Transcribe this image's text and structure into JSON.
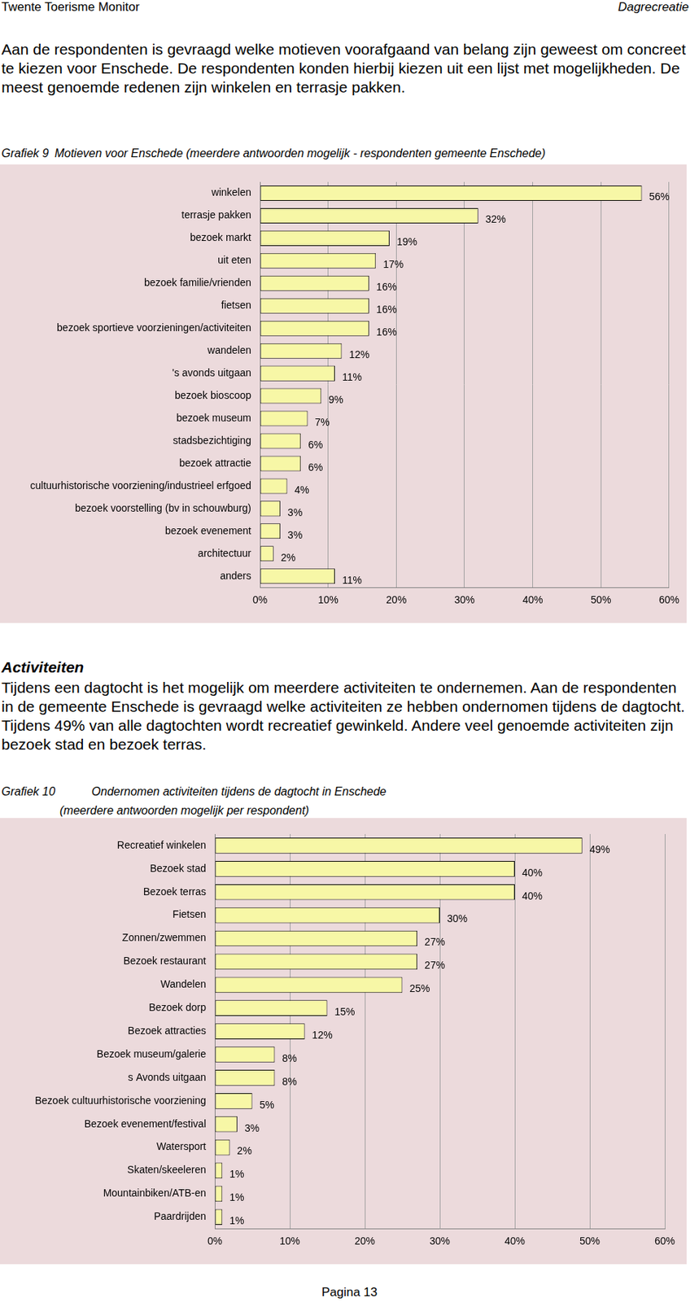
{
  "header": {
    "left": "Twente Toerisme Monitor",
    "right": "Dagrecreatie"
  },
  "intro": "Aan de respondenten is gevraagd welke motieven voorafgaand van belang zijn geweest om concreet te kiezen voor Enschede. De respondenten konden hierbij kiezen uit een lijst met mogelijkheden. De meest genoemde redenen zijn winkelen en terrasje pakken.",
  "section": {
    "heading": "Activiteiten",
    "text": "Tijdens een dagtocht is het mogelijk om meerdere activiteiten te ondernemen. Aan de respondenten in de gemeente Enschede is gevraagd welke activiteiten ze hebben ondernomen tijdens de dagtocht. Tijdens 49% van alle dagtochten wordt recreatief gewinkeld. Andere veel genoemde activiteiten zijn bezoek stad en bezoek terras."
  },
  "footer": "Pagina 13",
  "chart_data": [
    {
      "type": "bar",
      "title": "Grafiek 9",
      "subtitle": "Motieven voor Enschede (meerdere antwoorden mogelijk - respondenten gemeente Enschede)",
      "orientation": "horizontal",
      "categories": [
        "winkelen",
        "terrasje pakken",
        "bezoek markt",
        "uit eten",
        "bezoek familie/vrienden",
        "fietsen",
        "bezoek sportieve voorzieningen/activiteiten",
        "wandelen",
        "'s avonds uitgaan",
        "bezoek bioscoop",
        "bezoek museum",
        "stadsbezichtiging",
        "bezoek attractie",
        "cultuurhistorische voorziening/industrieel erfgoed",
        "bezoek voorstelling (bv in schouwburg)",
        "bezoek evenement",
        "architectuur",
        "anders"
      ],
      "values": [
        56,
        32,
        19,
        17,
        16,
        16,
        16,
        12,
        11,
        9,
        7,
        6,
        6,
        4,
        3,
        3,
        2,
        11
      ],
      "value_labels": [
        "56%",
        "32%",
        "19%",
        "17%",
        "16%",
        "16%",
        "16%",
        "12%",
        "11%",
        "9%",
        "7%",
        "6%",
        "6%",
        "4%",
        "3%",
        "3%",
        "2%",
        "11%"
      ],
      "data_labels": true,
      "color": "#f7f7a6",
      "grid": true,
      "xlim": [
        0,
        60
      ],
      "xticks": [
        {
          "value": 0,
          "label": "0%"
        },
        {
          "value": 10,
          "label": "10%"
        },
        {
          "value": 20,
          "label": "20%"
        },
        {
          "value": 30,
          "label": "30%"
        },
        {
          "value": 40,
          "label": "40%"
        },
        {
          "value": 50,
          "label": "50%"
        },
        {
          "value": 60,
          "label": "60%"
        }
      ]
    },
    {
      "type": "bar",
      "title": "Grafiek 10",
      "subtitle": "Ondernomen activiteiten tijdens de dagtocht in Enschede",
      "annotations": [
        "(meerdere antwoorden mogelijk per respondent)"
      ],
      "orientation": "horizontal",
      "categories": [
        "Recreatief winkelen",
        "Bezoek stad",
        "Bezoek terras",
        "Fietsen",
        "Zonnen/zwemmen",
        "Bezoek restaurant",
        "Wandelen",
        "Bezoek dorp",
        "Bezoek attracties",
        "Bezoek museum/galerie",
        "s Avonds uitgaan",
        "Bezoek cultuurhistorische voorziening",
        "Bezoek evenement/festival",
        "Watersport",
        "Skaten/skeeleren",
        "Mountainbiken/ATB-en",
        "Paardrijden"
      ],
      "values": [
        49,
        40,
        40,
        30,
        27,
        27,
        25,
        15,
        12,
        8,
        8,
        5,
        3,
        2,
        1,
        1,
        1
      ],
      "value_labels": [
        "49%",
        "40%",
        "40%",
        "30%",
        "27%",
        "27%",
        "25%",
        "15%",
        "12%",
        "8%",
        "8%",
        "5%",
        "3%",
        "2%",
        "1%",
        "1%",
        "1%"
      ],
      "data_labels": true,
      "color": "#f7f7a6",
      "grid": true,
      "xlim": [
        0,
        60
      ],
      "xticks": [
        {
          "value": 0,
          "label": "0%"
        },
        {
          "value": 10,
          "label": "10%"
        },
        {
          "value": 20,
          "label": "20%"
        },
        {
          "value": 30,
          "label": "30%"
        },
        {
          "value": 40,
          "label": "40%"
        },
        {
          "value": 50,
          "label": "50%"
        },
        {
          "value": 60,
          "label": "60%"
        }
      ]
    }
  ]
}
